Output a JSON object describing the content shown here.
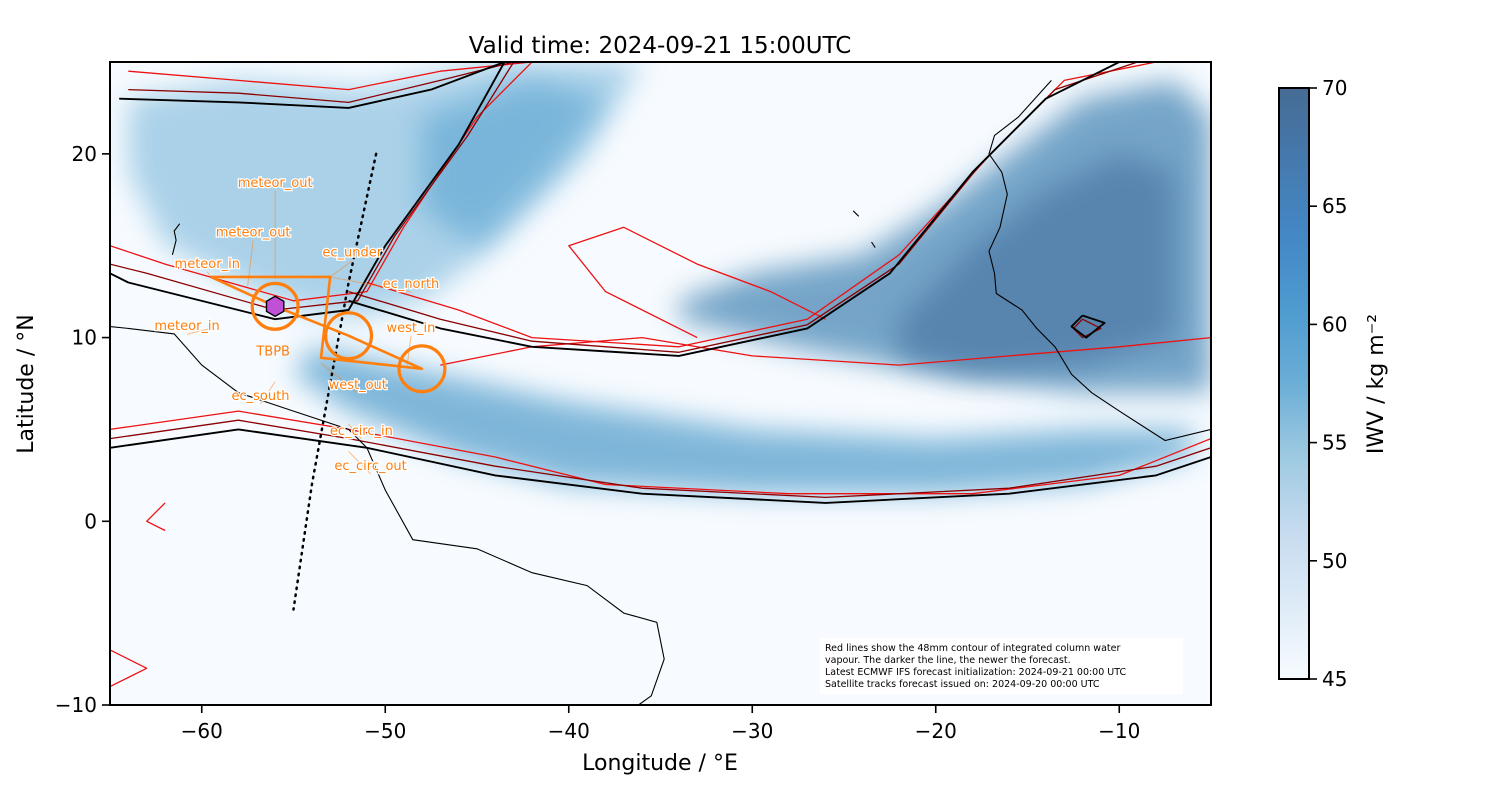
{
  "chart_data": {
    "type": "heatmap",
    "title": "Valid time: 2024-09-21 15:00UTC",
    "xlabel": "Longitude / °E",
    "ylabel": "Latitude / °N",
    "xlim": [
      -65,
      -5
    ],
    "ylim": [
      -10,
      25
    ],
    "x_ticks": [
      {
        "value": -60,
        "label": "−60"
      },
      {
        "value": -50,
        "label": "−50"
      },
      {
        "value": -40,
        "label": "−40"
      },
      {
        "value": -30,
        "label": "−30"
      },
      {
        "value": -20,
        "label": "−20"
      },
      {
        "value": -10,
        "label": "−10"
      }
    ],
    "y_ticks": [
      {
        "value": 20,
        "label": "20"
      },
      {
        "value": 10,
        "label": "10"
      },
      {
        "value": 0,
        "label": "0"
      },
      {
        "value": -10,
        "label": "−10"
      }
    ],
    "grid": false,
    "colorbar": {
      "label": "IWV / kg m⁻²",
      "range": [
        45,
        70
      ],
      "ticks": [
        {
          "value": 70,
          "label": "70"
        },
        {
          "value": 65,
          "label": "65"
        },
        {
          "value": 60,
          "label": "60"
        },
        {
          "value": 55,
          "label": "55"
        },
        {
          "value": 50,
          "label": "50"
        },
        {
          "value": 45,
          "label": "45"
        }
      ],
      "colormap": "Blues",
      "color_low": "#f7fbff",
      "color_high": "#466b95"
    },
    "moist_regions": [
      {
        "name": "band",
        "points": [
          [
            -54,
            9.5
          ],
          [
            -47,
            8
          ],
          [
            -40,
            6.5
          ],
          [
            -30,
            5
          ],
          [
            -20,
            4.5
          ],
          [
            -12,
            5
          ],
          [
            -6,
            5
          ],
          [
            -6,
            3.5
          ],
          [
            -12,
            2
          ],
          [
            -20,
            1.5
          ],
          [
            -30,
            1.5
          ],
          [
            -40,
            2
          ],
          [
            -46,
            3.5
          ],
          [
            -52,
            6
          ],
          [
            -55,
            8
          ]
        ],
        "iwv": 58
      },
      {
        "name": "east_plume",
        "points": [
          [
            -34,
            12
          ],
          [
            -30,
            13.5
          ],
          [
            -24,
            14.5
          ],
          [
            -20,
            17
          ],
          [
            -16,
            20
          ],
          [
            -12,
            23
          ],
          [
            -7,
            24
          ],
          [
            -5,
            22
          ],
          [
            -5,
            7
          ],
          [
            -12,
            7
          ],
          [
            -20,
            8
          ],
          [
            -28,
            9.5
          ],
          [
            -34,
            11
          ]
        ],
        "iwv": 62
      },
      {
        "name": "east_core",
        "points": [
          [
            -22,
            11
          ],
          [
            -18,
            15
          ],
          [
            -14,
            18
          ],
          [
            -10,
            20
          ],
          [
            -7,
            19
          ],
          [
            -7,
            10
          ],
          [
            -12,
            8.5
          ],
          [
            -18,
            8
          ],
          [
            -22,
            9
          ]
        ],
        "iwv": 66
      },
      {
        "name": "west_plume",
        "points": [
          [
            -64,
            23
          ],
          [
            -58,
            24
          ],
          [
            -51,
            23.5
          ],
          [
            -44,
            25
          ],
          [
            -36,
            25
          ],
          [
            -39,
            20
          ],
          [
            -44,
            15
          ],
          [
            -48,
            12
          ],
          [
            -52,
            11
          ],
          [
            -56,
            12
          ],
          [
            -62,
            15
          ],
          [
            -64,
            19
          ]
        ],
        "iwv": 53
      },
      {
        "name": "west_core",
        "points": [
          [
            -48,
            22
          ],
          [
            -42,
            24
          ],
          [
            -38,
            23
          ],
          [
            -41,
            19
          ],
          [
            -45,
            15
          ],
          [
            -48,
            17
          ]
        ],
        "iwv": 57
      }
    ],
    "contour_series": [
      {
        "color": "#ee1111",
        "width": 1.3,
        "lines": [
          [
            [
              -64,
              24.5
            ],
            [
              -58,
              24
            ],
            [
              -52,
              23.5
            ],
            [
              -47,
              24.5
            ],
            [
              -42,
              25
            ],
            [
              -45,
              22
            ],
            [
              -49,
              16
            ],
            [
              -51,
              12.5
            ],
            [
              -55,
              12
            ],
            [
              -62,
              14
            ],
            [
              -65,
              15
            ]
          ],
          [
            [
              -65,
              5
            ],
            [
              -58,
              6
            ],
            [
              -52,
              5
            ],
            [
              -44,
              3.5
            ],
            [
              -38,
              2
            ],
            [
              -28,
              1.5
            ],
            [
              -18,
              1.5
            ],
            [
              -10,
              2.5
            ],
            [
              -5,
              4.5
            ]
          ],
          [
            [
              -51,
              13
            ],
            [
              -46,
              11.5
            ],
            [
              -42,
              10
            ],
            [
              -34,
              9.5
            ],
            [
              -27,
              11
            ],
            [
              -22,
              14.5
            ],
            [
              -17,
              20
            ],
            [
              -13,
              24
            ],
            [
              -8,
              25
            ]
          ],
          [
            [
              -5,
              10
            ],
            [
              -10,
              9.5
            ],
            [
              -16,
              9
            ],
            [
              -22,
              8.5
            ],
            [
              -30,
              9
            ],
            [
              -36,
              10
            ],
            [
              -42,
              9.5
            ],
            [
              -47,
              8.5
            ]
          ],
          [
            [
              -33,
              10
            ],
            [
              -38,
              12.5
            ],
            [
              -40,
              15
            ],
            [
              -37,
              16
            ],
            [
              -33,
              14
            ],
            [
              -29,
              12.5
            ],
            [
              -26,
              11
            ]
          ],
          [
            [
              -62,
              1
            ],
            [
              -63,
              0
            ],
            [
              -62,
              -0.5
            ]
          ],
          [
            [
              -65,
              -7
            ],
            [
              -63,
              -8
            ],
            [
              -65,
              -9
            ]
          ]
        ]
      },
      {
        "color": "#8b0000",
        "width": 1.3,
        "lines": [
          [
            [
              -64,
              23.5
            ],
            [
              -58,
              23.3
            ],
            [
              -52,
              22.8
            ],
            [
              -47,
              24
            ],
            [
              -43,
              25
            ],
            [
              -45.5,
              21
            ],
            [
              -49.5,
              15.5
            ],
            [
              -51.5,
              12
            ],
            [
              -56,
              11.5
            ],
            [
              -63,
              13.5
            ],
            [
              -65,
              14
            ]
          ],
          [
            [
              -65,
              4.5
            ],
            [
              -58,
              5.5
            ],
            [
              -52,
              4.5
            ],
            [
              -44,
              3
            ],
            [
              -36,
              1.8
            ],
            [
              -26,
              1.3
            ],
            [
              -16,
              1.8
            ],
            [
              -8,
              3
            ],
            [
              -5,
              4
            ]
          ],
          [
            [
              -52,
              12.5
            ],
            [
              -47,
              11
            ],
            [
              -42,
              9.8
            ],
            [
              -34,
              9.2
            ],
            [
              -27,
              10.7
            ],
            [
              -22,
              14
            ],
            [
              -17.5,
              19.5
            ],
            [
              -13.5,
              23.5
            ],
            [
              -9,
              25
            ]
          ],
          [
            [
              -12,
              11
            ],
            [
              -11,
              10.5
            ],
            [
              -12,
              10
            ],
            [
              -12.5,
              10.5
            ],
            [
              -12,
              11
            ]
          ]
        ]
      },
      {
        "color": "#000000",
        "width": 1.9,
        "lines": [
          [
            [
              -64.5,
              23
            ],
            [
              -58,
              22.8
            ],
            [
              -52,
              22.5
            ],
            [
              -47.5,
              23.5
            ],
            [
              -43.5,
              25
            ],
            [
              -46,
              20.5
            ],
            [
              -50,
              15
            ],
            [
              -52,
              11.5
            ],
            [
              -56,
              11
            ],
            [
              -64,
              13
            ],
            [
              -65,
              13.5
            ]
          ],
          [
            [
              -65,
              4
            ],
            [
              -58,
              5
            ],
            [
              -51,
              4
            ],
            [
              -44,
              2.5
            ],
            [
              -36,
              1.5
            ],
            [
              -26,
              1
            ],
            [
              -16,
              1.5
            ],
            [
              -8,
              2.5
            ],
            [
              -5,
              3.5
            ]
          ],
          [
            [
              -52,
              12
            ],
            [
              -47,
              10.5
            ],
            [
              -42,
              9.5
            ],
            [
              -34,
              9
            ],
            [
              -27,
              10.5
            ],
            [
              -22.5,
              13.5
            ],
            [
              -18,
              19
            ],
            [
              -14,
              23
            ],
            [
              -10,
              25
            ]
          ],
          [
            [
              -12,
              11.2
            ],
            [
              -10.8,
              10.8
            ],
            [
              -11.8,
              10
            ],
            [
              -12.6,
              10.6
            ],
            [
              -12,
              11.2
            ]
          ]
        ]
      }
    ],
    "land_outlines": [
      [
        [
          -77,
          8.5
        ],
        [
          -73,
          11.5
        ],
        [
          -71,
          12.3
        ],
        [
          -67,
          10.8
        ],
        [
          -64,
          10.5
        ],
        [
          -61.5,
          10.2
        ],
        [
          -60,
          8.5
        ],
        [
          -58,
          7
        ],
        [
          -55,
          6
        ],
        [
          -52,
          5
        ],
        [
          -51,
          4
        ],
        [
          -50,
          1.7
        ],
        [
          -48.5,
          -1
        ],
        [
          -45,
          -1.5
        ],
        [
          -42,
          -2.8
        ],
        [
          -39,
          -3.5
        ],
        [
          -37,
          -5
        ],
        [
          -35.2,
          -5.5
        ],
        [
          -34.8,
          -7.5
        ],
        [
          -35.5,
          -9.5
        ],
        [
          -36.2,
          -10
        ]
      ],
      [
        [
          -13.7,
          24
        ],
        [
          -15.5,
          22
        ],
        [
          -16.8,
          21
        ],
        [
          -17.1,
          20
        ],
        [
          -16.4,
          19
        ],
        [
          -16.1,
          17.8
        ],
        [
          -16.5,
          16
        ],
        [
          -17.1,
          14.7
        ],
        [
          -16.8,
          13.5
        ],
        [
          -16.7,
          12.4
        ],
        [
          -15.3,
          11.5
        ],
        [
          -14.5,
          10.5
        ],
        [
          -13.5,
          9.5
        ],
        [
          -12.6,
          8
        ],
        [
          -11.5,
          7
        ],
        [
          -10,
          6
        ],
        [
          -7.5,
          4.4
        ],
        [
          -5,
          5
        ]
      ],
      [
        [
          -61.2,
          16.2
        ],
        [
          -61.5,
          15.8
        ],
        [
          -61.4,
          15.3
        ],
        [
          -61.6,
          14.5
        ]
      ],
      [
        [
          -24.5,
          16.9
        ],
        [
          -24.2,
          16.6
        ]
      ],
      [
        [
          -23.5,
          15.2
        ],
        [
          -23.3,
          14.9
        ]
      ]
    ],
    "satellite_track": {
      "points": [
        [
          -50.5,
          20
        ],
        [
          -52,
          13
        ],
        [
          -54,
          2
        ],
        [
          -55,
          -4.8
        ]
      ],
      "style": "dotted"
    },
    "tbpb_marker": {
      "lon": -56,
      "lat": 11.7,
      "label": "TBPB",
      "color": "#c050d8"
    },
    "flight_circles": [
      {
        "lon": -56,
        "lat": 11.7,
        "radius_deg": 1.25
      },
      {
        "lon": -52,
        "lat": 10.1,
        "radius_deg": 1.25
      },
      {
        "lon": -48,
        "lat": 8.3,
        "radius_deg": 1.25
      }
    ],
    "flight_track": [
      [
        -59.5,
        13.3
      ],
      [
        -56,
        11.7
      ],
      [
        -52,
        10.1
      ],
      [
        -48,
        8.3
      ],
      [
        -53.5,
        8.9
      ],
      [
        -53,
        13.3
      ],
      [
        -59.5,
        13.3
      ]
    ],
    "waypoints": [
      {
        "label": "meteor_out",
        "lon": -56,
        "lat": 13.2,
        "text_lon": -56,
        "text_lat": 18.2
      },
      {
        "label": "meteor_out",
        "lon": -57.5,
        "lat": 12.8,
        "text_lon": -57.2,
        "text_lat": 15.5
      },
      {
        "label": "meteor_in",
        "lon": -59.5,
        "lat": 13.3,
        "text_lon": -59.7,
        "text_lat": 13.8
      },
      {
        "label": "ec_under",
        "lon": -53,
        "lat": 13.3,
        "text_lon": -51.8,
        "text_lat": 14.4
      },
      {
        "label": "ec_north",
        "lon": -53,
        "lat": 13.3,
        "text_lon": -48.6,
        "text_lat": 12.7
      },
      {
        "label": "west_in",
        "lon": -48.8,
        "lat": 8.5,
        "text_lon": -48.6,
        "text_lat": 10.3
      },
      {
        "label": "meteor_in",
        "lon": -59.5,
        "lat": 10.5,
        "text_lon": -60.8,
        "text_lat": 10.4
      },
      {
        "label": "west_out",
        "lon": -53.5,
        "lat": 8.6,
        "text_lon": -51.5,
        "text_lat": 7.2
      },
      {
        "label": "ec_south",
        "lon": -56,
        "lat": 7.6,
        "text_lon": -56.8,
        "text_lat": 6.6
      },
      {
        "label": "ec_circ_in",
        "lon": -52,
        "lat": 5.3,
        "text_lon": -51.3,
        "text_lat": 4.7
      },
      {
        "label": "ec_circ_out",
        "lon": -52,
        "lat": 3.8,
        "text_lon": -50.8,
        "text_lat": 2.8
      }
    ],
    "note_lines": [
      "Red lines show the 48mm contour of integrated column water",
      "vapour. The darker the line, the newer the forecast.",
      "Latest ECMWF IFS forecast initialization: 2024-09-21 00:00 UTC",
      "Satellite tracks forecast issued on: 2024-09-20 00:00 UTC"
    ],
    "accent_orange": "#ff7f0e",
    "contour_colors": [
      "#ee1111",
      "#8b0000",
      "#000000"
    ]
  }
}
